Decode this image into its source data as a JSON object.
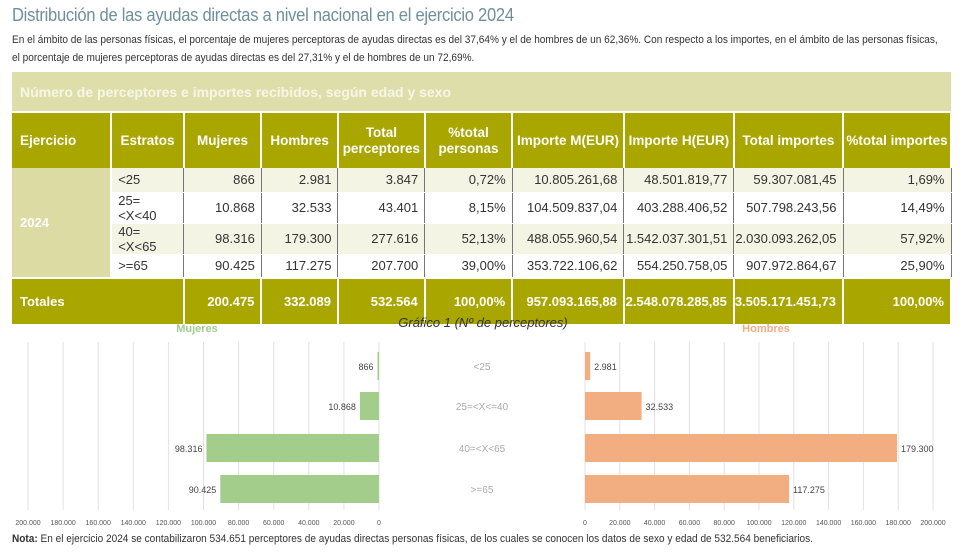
{
  "title": "Distribución de las ayudas directas a nivel nacional en el ejercicio 2024",
  "intro": "En el ámbito de las personas físicas, el porcentaje de mujeres perceptoras de ayudas directas es del 37,64% y el de hombres de un 62,36%. Con respecto a los importes, en el ámbito de las personas físicas, el porcentaje de mujeres perceptoras de ayudas directas es del 27,31% y el de hombres de un 72,69%.",
  "table": {
    "caption": "Número de perceptores e importes recibidos, según edad y sexo",
    "headers": [
      "Ejercicio",
      "Estratos",
      "Mujeres",
      "Hombres",
      "Total perceptores",
      "%total personas",
      "Importe M(EUR)",
      "Importe H(EUR)",
      "Total importes",
      "%total importes"
    ],
    "year": "2024",
    "rows": [
      [
        "<25",
        "866",
        "2.981",
        "3.847",
        "0,72%",
        "10.805.261,68",
        "48.501.819,77",
        "59.307.081,45",
        "1,69%"
      ],
      [
        "25=<X<40",
        "10.868",
        "32.533",
        "43.401",
        "8,15%",
        "104.509.837,04",
        "403.288.406,52",
        "507.798.243,56",
        "14,49%"
      ],
      [
        "40=<X<65",
        "98.316",
        "179.300",
        "277.616",
        "52,13%",
        "488.055.960,54",
        "1.542.037.301,51",
        "2.030.093.262,05",
        "57,92%"
      ],
      [
        ">=65",
        "90.425",
        "117.275",
        "207.700",
        "39,00%",
        "353.722.106,62",
        "554.250.758,05",
        "907.972.864,67",
        "25,90%"
      ]
    ],
    "totals": [
      "Totales",
      "200.475",
      "332.089",
      "532.564",
      "100,00%",
      "957.093.165,88",
      "2.548.078.285,85",
      "3.505.171.451,73",
      "100,00%"
    ]
  },
  "chart_data": {
    "type": "bar",
    "orientation": "horizontal",
    "title": "Gráfico 1 (Nº de perceptores)",
    "categories": [
      "<25",
      "25=<X<=40",
      "40=<X<65",
      ">=65"
    ],
    "series": [
      {
        "name": "Mujeres",
        "values": [
          866,
          10868,
          98316,
          90425
        ],
        "labels": [
          "866",
          "10.868",
          "98.316",
          "90.425"
        ],
        "color": "#a3cd8a"
      },
      {
        "name": "Hombres",
        "values": [
          2981,
          32533,
          179300,
          117275
        ],
        "labels": [
          "2.981",
          "32.533",
          "179.300",
          "117.275"
        ],
        "color": "#f2ad80"
      }
    ],
    "xlim": [
      0,
      200000
    ],
    "ticks": [
      "0",
      "20.000",
      "40.000",
      "60.000",
      "80.000",
      "100.000",
      "120.000",
      "140.000",
      "160.000",
      "180.000",
      "200.000"
    ],
    "grid": true
  },
  "note": {
    "label": "Nota:",
    "text": " En el ejercicio 2024 se contabilizaron 534.651 perceptores de ayudas directas personas físicas, de los cuales se conocen los datos de sexo y edad de 532.564 beneficiarios."
  }
}
